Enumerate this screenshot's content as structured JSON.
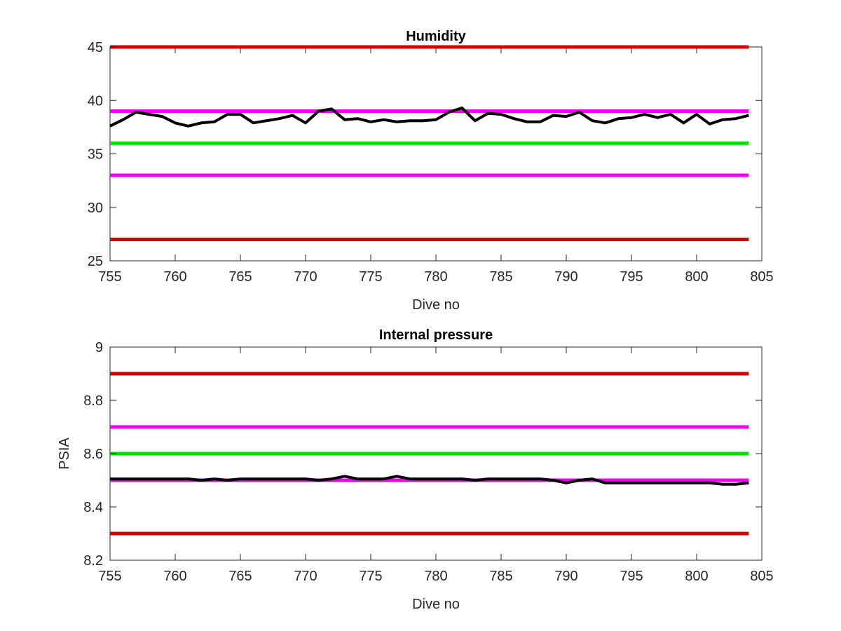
{
  "chart_data": [
    {
      "type": "line",
      "title": "Humidity",
      "xlabel": "Dive no",
      "ylabel": "",
      "xlim": [
        755,
        805
      ],
      "ylim": [
        25,
        45
      ],
      "xticks": [
        755,
        760,
        765,
        770,
        775,
        780,
        785,
        790,
        795,
        800,
        805
      ],
      "yticks": [
        25,
        30,
        35,
        40,
        45
      ],
      "grid": false,
      "reference_lines": [
        {
          "y": 45,
          "color": "#d40000"
        },
        {
          "y": 39,
          "color": "#ee00ee"
        },
        {
          "y": 36,
          "color": "#00e000"
        },
        {
          "y": 33,
          "color": "#ee00ee"
        },
        {
          "y": 27,
          "color": "#d40000"
        }
      ],
      "reference_x_range": [
        755,
        804
      ],
      "series": [
        {
          "color": "#000000",
          "x": [
            755,
            756,
            757,
            758,
            759,
            760,
            761,
            762,
            763,
            764,
            765,
            766,
            767,
            768,
            769,
            770,
            771,
            772,
            773,
            774,
            775,
            776,
            777,
            778,
            779,
            780,
            781,
            782,
            783,
            784,
            785,
            786,
            787,
            788,
            789,
            790,
            791,
            792,
            793,
            794,
            795,
            796,
            797,
            798,
            799,
            800,
            801,
            802,
            803,
            804
          ],
          "y": [
            37.6,
            38.2,
            38.9,
            38.7,
            38.5,
            37.9,
            37.6,
            37.9,
            38.0,
            38.7,
            38.7,
            37.9,
            38.1,
            38.3,
            38.6,
            37.9,
            39.0,
            39.2,
            38.2,
            38.3,
            38.0,
            38.2,
            38.0,
            38.1,
            38.1,
            38.2,
            38.9,
            39.3,
            38.1,
            38.8,
            38.7,
            38.3,
            38.0,
            38.0,
            38.6,
            38.5,
            38.9,
            38.1,
            37.9,
            38.3,
            38.4,
            38.7,
            38.4,
            38.7,
            37.9,
            38.7,
            37.8,
            38.2,
            38.3,
            38.6
          ]
        }
      ]
    },
    {
      "type": "line",
      "title": "Internal pressure",
      "xlabel": "Dive no",
      "ylabel": "PSIA",
      "xlim": [
        755,
        805
      ],
      "ylim": [
        8.2,
        9
      ],
      "xticks": [
        755,
        760,
        765,
        770,
        775,
        780,
        785,
        790,
        795,
        800,
        805
      ],
      "yticks": [
        8.2,
        8.4,
        8.6,
        8.8,
        9
      ],
      "ytick_labels": [
        "8.2",
        "8.4",
        "8.6",
        "8.8",
        "9"
      ],
      "grid": false,
      "reference_lines": [
        {
          "y": 8.9,
          "color": "#d40000"
        },
        {
          "y": 8.7,
          "color": "#ee00ee"
        },
        {
          "y": 8.6,
          "color": "#00e000"
        },
        {
          "y": 8.5,
          "color": "#ee00ee"
        },
        {
          "y": 8.3,
          "color": "#d40000"
        }
      ],
      "reference_x_range": [
        755,
        804
      ],
      "series": [
        {
          "color": "#000000",
          "x": [
            755,
            756,
            757,
            758,
            759,
            760,
            761,
            762,
            763,
            764,
            765,
            766,
            767,
            768,
            769,
            770,
            771,
            772,
            773,
            774,
            775,
            776,
            777,
            778,
            779,
            780,
            781,
            782,
            783,
            784,
            785,
            786,
            787,
            788,
            789,
            790,
            791,
            792,
            793,
            794,
            795,
            796,
            797,
            798,
            799,
            800,
            801,
            802,
            803,
            804
          ],
          "y": [
            8.505,
            8.505,
            8.505,
            8.505,
            8.505,
            8.505,
            8.505,
            8.5,
            8.505,
            8.5,
            8.505,
            8.505,
            8.505,
            8.505,
            8.505,
            8.505,
            8.5,
            8.505,
            8.515,
            8.505,
            8.505,
            8.505,
            8.515,
            8.505,
            8.505,
            8.505,
            8.505,
            8.505,
            8.5,
            8.505,
            8.505,
            8.505,
            8.505,
            8.505,
            8.5,
            8.49,
            8.5,
            8.505,
            8.49,
            8.49,
            8.49,
            8.49,
            8.49,
            8.49,
            8.49,
            8.49,
            8.49,
            8.485,
            8.485,
            8.49
          ]
        }
      ]
    }
  ]
}
